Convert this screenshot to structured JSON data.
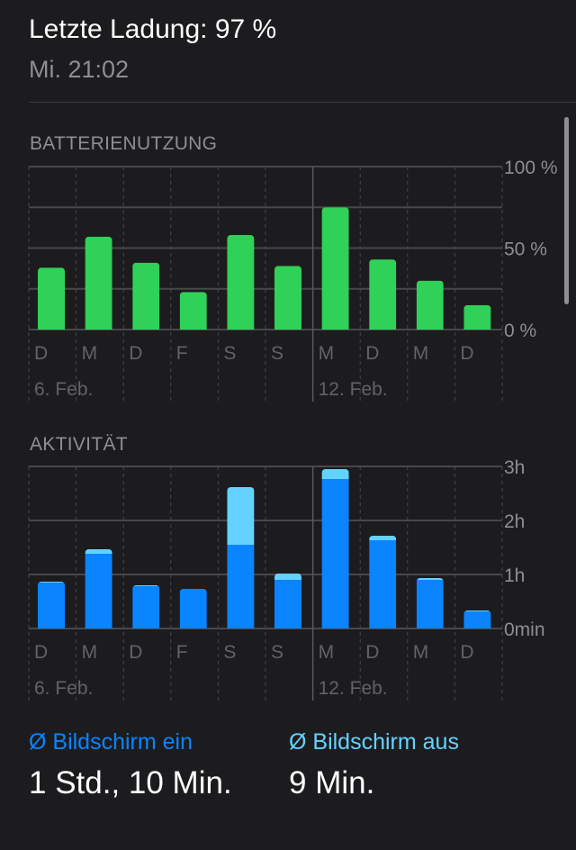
{
  "header": {
    "title": "Letzte Ladung: 97 %",
    "subtitle": "Mi. 21:02"
  },
  "chart_data": [
    {
      "type": "bar",
      "title": "BATTERIENUTZUNG",
      "categories": [
        "D",
        "M",
        "D",
        "F",
        "S",
        "S",
        "M",
        "D",
        "M",
        "D"
      ],
      "date_labels": [
        {
          "index": 0,
          "label": "6. Feb."
        },
        {
          "index": 6,
          "label": "12. Feb."
        }
      ],
      "values": [
        38,
        57,
        41,
        23,
        58,
        39,
        75,
        43,
        30,
        15
      ],
      "yticks": [
        "0 %",
        "50 %",
        "100 %"
      ],
      "ylim": [
        0,
        100
      ],
      "unit": "%",
      "color": "#30d158",
      "grid": true
    },
    {
      "type": "bar",
      "stacked": true,
      "title": "AKTIVITÄT",
      "categories": [
        "D",
        "M",
        "D",
        "F",
        "S",
        "S",
        "M",
        "D",
        "M",
        "D"
      ],
      "date_labels": [
        {
          "index": 0,
          "label": "6. Feb."
        },
        {
          "index": 6,
          "label": "12. Feb."
        }
      ],
      "series": [
        {
          "name": "Bildschirm ein",
          "values": [
            51,
            83,
            47,
            44,
            93,
            54,
            166,
            98,
            54,
            19
          ],
          "color": "#0a84ff"
        },
        {
          "name": "Bildschirm aus",
          "values": [
            1,
            5,
            1,
            0,
            64,
            7,
            11,
            5,
            2,
            1
          ],
          "color": "#64d2ff"
        }
      ],
      "yticks": [
        "0min",
        "1h",
        "2h",
        "3h"
      ],
      "ylim": [
        0,
        180
      ],
      "unit": "min",
      "grid": true
    }
  ],
  "stats": [
    {
      "label": "Ø Bildschirm ein",
      "value": "1 Std., 10 Min.",
      "color": "#0a84ff"
    },
    {
      "label": "Ø Bildschirm aus",
      "value": "9 Min.",
      "color": "#64d2ff"
    }
  ]
}
